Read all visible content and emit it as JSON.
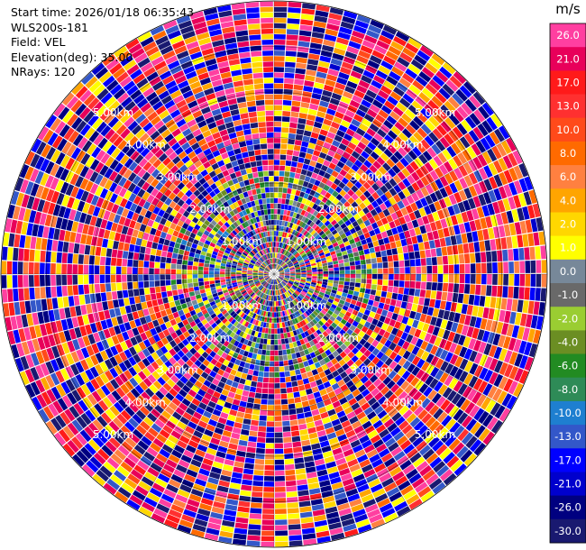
{
  "info": {
    "start_time": "Start time: 2026/01/18 06:35:43",
    "site": "WLS200s-181",
    "field": "Field: VEL",
    "elevation": "Elevation(deg): 35.00",
    "nrays": "NRays: 120"
  },
  "chart_data": {
    "type": "ppi_polar",
    "field": "VEL",
    "units": "m/s",
    "n_rays": 120,
    "max_range_km": 6.0,
    "range_rings_km": [
      1.0,
      2.0,
      3.0,
      4.0,
      5.0
    ],
    "ring_labels": [
      "1.00km",
      "2.00km",
      "3.00km",
      "4.00km",
      "5.00km"
    ],
    "colorbar": {
      "title": "m/s",
      "ticks": [
        "26.0",
        "21.0",
        "17.0",
        "13.0",
        "10.0",
        "8.0",
        "6.0",
        "4.0",
        "2.0",
        "1.0",
        "0.0",
        "-1.0",
        "-2.0",
        "-4.0",
        "-6.0",
        "-8.0",
        "-10.0",
        "-13.0",
        "-17.0",
        "-21.0",
        "-26.0",
        "-30.0"
      ],
      "colors": [
        "#ff3fa0",
        "#e8005a",
        "#ff1a1a",
        "#ff3030",
        "#ff4a1a",
        "#ff6a00",
        "#ff8040",
        "#ffa500",
        "#ffd700",
        "#ffff00",
        "#778899",
        "#696969",
        "#9acd32",
        "#6b8e23",
        "#228b22",
        "#2e8b57",
        "#1e7fd0",
        "#3357c9",
        "#0000ff",
        "#0000cd",
        "#000080",
        "#191970"
      ]
    }
  }
}
